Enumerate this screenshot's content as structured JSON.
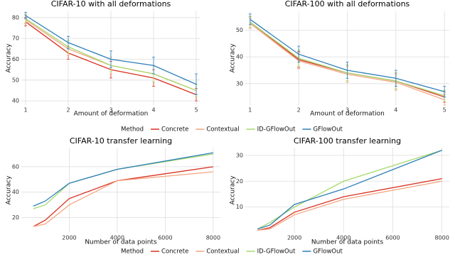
{
  "chart_data": [
    {
      "type": "line",
      "title": "CIFAR-10 with all deformations",
      "x_label": "Amount of deformation",
      "y_label": "Accuracy",
      "legend_title": "Method",
      "x": [
        1,
        2,
        3,
        4,
        5
      ],
      "xlim": [
        0.9,
        5.1
      ],
      "xticks": [
        1,
        2,
        3,
        4,
        5
      ],
      "ylim": [
        38,
        83
      ],
      "yticks": [
        40,
        50,
        60,
        70,
        80
      ],
      "grid": true,
      "series": [
        {
          "name": "Concrete",
          "color": "#d7301f",
          "values": [
            78,
            63,
            55,
            51,
            43
          ],
          "errors": [
            2,
            3,
            4,
            4,
            3
          ]
        },
        {
          "name": "Contextual",
          "color": "#f4a582",
          "values": [
            79,
            65,
            57,
            53,
            45
          ],
          "errors": [
            2,
            3,
            4,
            4,
            3
          ]
        },
        {
          "name": "ID-GFlowOut",
          "color": "#a6d96a",
          "values": [
            79.5,
            66,
            57,
            53,
            45
          ],
          "errors": [
            2,
            3,
            3,
            4,
            3
          ]
        },
        {
          "name": "GFlowOut",
          "color": "#2c7fb8",
          "values": [
            81,
            68,
            60,
            57,
            48
          ],
          "errors": [
            1.5,
            3,
            4,
            4,
            5
          ]
        }
      ]
    },
    {
      "type": "line",
      "title": "CIFAR-100 with all deformations",
      "x_label": "Amount of deformation",
      "y_label": "Accuracy",
      "x": [
        1,
        2,
        3,
        4,
        5
      ],
      "xlim": [
        0.9,
        5.1
      ],
      "xticks": [
        1,
        2,
        3,
        4,
        5
      ],
      "ylim": [
        22,
        57
      ],
      "yticks": [
        30,
        40,
        50
      ],
      "grid": true,
      "series": [
        {
          "color": "#d7301f",
          "values": [
            53,
            39,
            34,
            31,
            25
          ],
          "errors": [
            2,
            3,
            3,
            3,
            2
          ]
        },
        {
          "color": "#f4a582",
          "values": [
            52.5,
            38.5,
            33.5,
            30.5,
            24
          ],
          "errors": [
            2,
            3,
            3,
            3,
            2
          ]
        },
        {
          "color": "#a6d96a",
          "values": [
            53,
            39.5,
            34,
            31,
            25.5
          ],
          "errors": [
            2,
            3,
            3,
            3,
            2
          ]
        },
        {
          "color": "#2c7fb8",
          "values": [
            54,
            41,
            35,
            32,
            27
          ],
          "errors": [
            2,
            3,
            3,
            3,
            2
          ]
        }
      ]
    },
    {
      "type": "line",
      "title": "CIFAR-10 transfer learning",
      "x_label": "Number of data points",
      "y_label": "Accuracy",
      "legend_title": "Method",
      "x": [
        500,
        1000,
        2000,
        4000,
        8000
      ],
      "xlim": [
        0,
        8300
      ],
      "xticks": [
        2000,
        4000,
        6000,
        8000
      ],
      "ylim": [
        8,
        75
      ],
      "yticks": [
        20,
        40,
        60
      ],
      "grid": true,
      "series": [
        {
          "name": "Concrete",
          "color": "#d7301f",
          "values": [
            13,
            18,
            35,
            49,
            60
          ]
        },
        {
          "name": "Contextual",
          "color": "#f4a582",
          "values": [
            13,
            15,
            30,
            49,
            56
          ]
        },
        {
          "name": "ID-GFlowOut",
          "color": "#a6d96a",
          "values": [
            27,
            30,
            47,
            58,
            70
          ]
        },
        {
          "name": "GFlowOut",
          "color": "#2c7fb8",
          "values": [
            29,
            33,
            47,
            58,
            71
          ]
        }
      ]
    },
    {
      "type": "line",
      "title": "CIFAR-100 transfer learning",
      "x_label": "Number of data points",
      "y_label": "Accuracy",
      "x": [
        500,
        1000,
        2000,
        4000,
        8000
      ],
      "xlim": [
        0,
        8300
      ],
      "xticks": [
        2000,
        4000,
        6000,
        8000
      ],
      "ylim": [
        0,
        33
      ],
      "yticks": [
        10,
        20,
        30
      ],
      "grid": true,
      "series": [
        {
          "color": "#d7301f",
          "values": [
            1,
            2,
            8,
            14,
            21
          ]
        },
        {
          "color": "#f4a582",
          "values": [
            1,
            1.5,
            7,
            13,
            20
          ]
        },
        {
          "color": "#a6d96a",
          "values": [
            1.5,
            4,
            10,
            20,
            32
          ]
        },
        {
          "color": "#2c7fb8",
          "values": [
            1.5,
            3,
            11,
            17,
            32
          ]
        }
      ]
    }
  ]
}
